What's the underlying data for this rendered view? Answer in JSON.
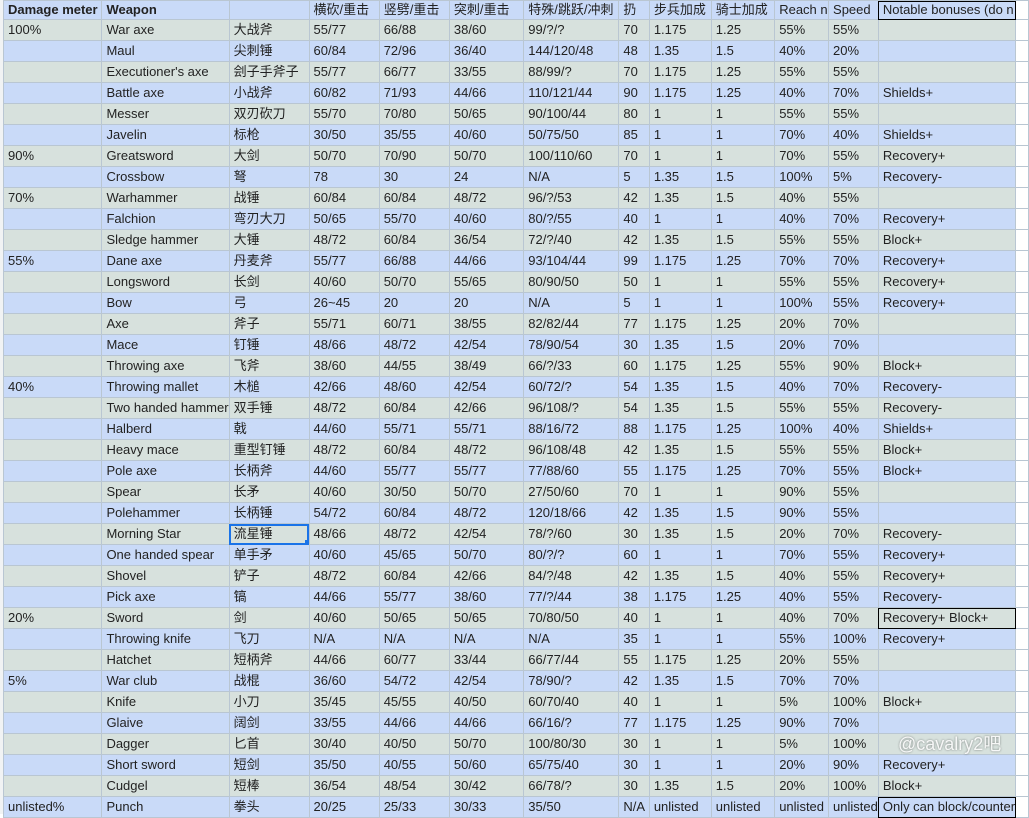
{
  "headers": [
    "Damage meter",
    "Weapon",
    "",
    "横砍/重击",
    "竖劈/重击",
    "突刺/重击",
    "特殊/跳跃/冲刺",
    "扔",
    "步兵加成",
    "骑士加成",
    "Reach n",
    "Speed",
    "Notable bonuses (do n"
  ],
  "rows": [
    [
      "100%",
      "War axe",
      "大战斧",
      "55/77",
      "66/88",
      "38/60",
      "99/?/?",
      "70",
      "1.175",
      "1.25",
      "55%",
      "55%",
      ""
    ],
    [
      "",
      "Maul",
      "尖刺锤",
      "60/84",
      "72/96",
      "36/40",
      "144/120/48",
      "48",
      "1.35",
      "1.5",
      "40%",
      "20%",
      ""
    ],
    [
      "",
      "Executioner's axe",
      "刽子手斧子",
      "55/77",
      "66/77",
      "33/55",
      "88/99/?",
      "70",
      "1.175",
      "1.25",
      "55%",
      "55%",
      ""
    ],
    [
      "",
      "Battle axe",
      "小战斧",
      "60/82",
      "71/93",
      "44/66",
      "110/121/44",
      "90",
      "1.175",
      "1.25",
      "40%",
      "70%",
      "Shields+"
    ],
    [
      "",
      "Messer",
      "双刃砍刀",
      "55/70",
      "70/80",
      "50/65",
      "90/100/44",
      "80",
      "1",
      "1",
      "55%",
      "55%",
      ""
    ],
    [
      "",
      "Javelin",
      "标枪",
      "30/50",
      "35/55",
      "40/60",
      "50/75/50",
      "85",
      "1",
      "1",
      "70%",
      "40%",
      "Shields+"
    ],
    [
      "90%",
      "Greatsword",
      "大剑",
      "50/70",
      "70/90",
      "50/70",
      "100/110/60",
      "70",
      "1",
      "1",
      "70%",
      "55%",
      "Recovery+"
    ],
    [
      "",
      "Crossbow",
      "弩",
      "78",
      "30",
      "24",
      "N/A",
      "5",
      "1.35",
      "1.5",
      "100%",
      "5%",
      "Recovery-"
    ],
    [
      "70%",
      "Warhammer",
      "战锤",
      "60/84",
      "60/84",
      "48/72",
      "96/?/53",
      "42",
      "1.35",
      "1.5",
      "40%",
      "55%",
      ""
    ],
    [
      "",
      "Falchion",
      "弯刃大刀",
      "50/65",
      "55/70",
      "40/60",
      "80/?/55",
      "40",
      "1",
      "1",
      "40%",
      "70%",
      "Recovery+"
    ],
    [
      "",
      "Sledge hammer",
      "大锤",
      "48/72",
      "60/84",
      "36/54",
      "72/?/40",
      "42",
      "1.35",
      "1.5",
      "55%",
      "55%",
      "Block+"
    ],
    [
      "55%",
      "Dane axe",
      "丹麦斧",
      "55/77",
      "66/88",
      "44/66",
      "93/104/44",
      "99",
      "1.175",
      "1.25",
      "70%",
      "70%",
      "Recovery+"
    ],
    [
      "",
      "Longsword",
      "长剑",
      "40/60",
      "50/70",
      "55/65",
      "80/90/50",
      "50",
      "1",
      "1",
      "55%",
      "55%",
      "Recovery+"
    ],
    [
      "",
      "Bow",
      "弓",
      "26~45",
      "20",
      "20",
      "N/A",
      "5",
      "1",
      "1",
      "100%",
      "55%",
      "Recovery+"
    ],
    [
      "",
      "Axe",
      "斧子",
      "55/71",
      "60/71",
      "38/55",
      "82/82/44",
      "77",
      "1.175",
      "1.25",
      "20%",
      "70%",
      ""
    ],
    [
      "",
      "Mace",
      "钉锤",
      "48/66",
      "48/72",
      "42/54",
      "78/90/54",
      "30",
      "1.35",
      "1.5",
      "20%",
      "70%",
      ""
    ],
    [
      "",
      "Throwing axe",
      "飞斧",
      "38/60",
      "44/55",
      "38/49",
      "66/?/33",
      "60",
      "1.175",
      "1.25",
      "55%",
      "90%",
      "Block+"
    ],
    [
      "40%",
      "Throwing mallet",
      "木槌",
      "42/66",
      "48/60",
      "42/54",
      "60/72/?",
      "54",
      "1.35",
      "1.5",
      "40%",
      "70%",
      "Recovery-"
    ],
    [
      "",
      "Two handed hammer",
      "双手锤",
      "48/72",
      "60/84",
      "42/66",
      "96/108/?",
      "54",
      "1.35",
      "1.5",
      "55%",
      "55%",
      "Recovery-"
    ],
    [
      "",
      "Halberd",
      "戟",
      "44/60",
      "55/71",
      "55/71",
      "88/16/72",
      "88",
      "1.175",
      "1.25",
      "100%",
      "40%",
      "Shields+"
    ],
    [
      "",
      "Heavy mace",
      "重型钉锤",
      "48/72",
      "60/84",
      "48/72",
      "96/108/48",
      "42",
      "1.35",
      "1.5",
      "55%",
      "55%",
      "Block+"
    ],
    [
      "",
      "Pole axe",
      "长柄斧",
      "44/60",
      "55/77",
      "55/77",
      "77/88/60",
      "55",
      "1.175",
      "1.25",
      "70%",
      "55%",
      "Block+"
    ],
    [
      "",
      "Spear",
      "长矛",
      "40/60",
      "30/50",
      "50/70",
      "27/50/60",
      "70",
      "1",
      "1",
      "90%",
      "55%",
      ""
    ],
    [
      "",
      "Polehammer",
      "长柄锤",
      "54/72",
      "60/84",
      "48/72",
      "120/18/66",
      "42",
      "1.35",
      "1.5",
      "90%",
      "55%",
      ""
    ],
    [
      "",
      "Morning Star",
      "流星锤",
      "48/66",
      "48/72",
      "42/54",
      "78/?/60",
      "30",
      "1.35",
      "1.5",
      "20%",
      "70%",
      "Recovery-"
    ],
    [
      "",
      "One handed spear",
      "单手矛",
      "40/60",
      "45/65",
      "50/70",
      "80/?/?",
      "60",
      "1",
      "1",
      "70%",
      "55%",
      "Recovery+"
    ],
    [
      "",
      "Shovel",
      "铲子",
      "48/72",
      "60/84",
      "42/66",
      "84/?/48",
      "42",
      "1.35",
      "1.5",
      "40%",
      "55%",
      "Recovery+"
    ],
    [
      "",
      "Pick axe",
      "镐",
      "44/66",
      "55/77",
      "38/60",
      "77/?/44",
      "38",
      "1.175",
      "1.25",
      "40%",
      "55%",
      "Recovery-"
    ],
    [
      "20%",
      "Sword",
      "剑",
      "40/60",
      "50/65",
      "50/65",
      "70/80/50",
      "40",
      "1",
      "1",
      "40%",
      "70%",
      "Recovery+ Block+"
    ],
    [
      "",
      "Throwing knife",
      "飞刀",
      "N/A",
      "N/A",
      "N/A",
      "N/A",
      "35",
      "1",
      "1",
      "55%",
      "100%",
      "Recovery+"
    ],
    [
      "",
      "Hatchet",
      "短柄斧",
      "44/66",
      "60/77",
      "33/44",
      "66/77/44",
      "55",
      "1.175",
      "1.25",
      "20%",
      "55%",
      ""
    ],
    [
      "5%",
      "War club",
      "战棍",
      "36/60",
      "54/72",
      "42/54",
      "78/90/?",
      "42",
      "1.35",
      "1.5",
      "70%",
      "70%",
      ""
    ],
    [
      "",
      "Knife",
      "小刀",
      "35/45",
      "45/55",
      "40/50",
      "60/70/40",
      "40",
      "1",
      "1",
      "5%",
      "100%",
      "Block+"
    ],
    [
      "",
      "Glaive",
      "阔剑",
      "33/55",
      "44/66",
      "44/66",
      "66/16/?",
      "77",
      "1.175",
      "1.25",
      "90%",
      "70%",
      ""
    ],
    [
      "",
      "Dagger",
      "匕首",
      "30/40",
      "40/50",
      "50/70",
      "100/80/30",
      "30",
      "1",
      "1",
      "5%",
      "100%",
      ""
    ],
    [
      "",
      "Short sword",
      "短剑",
      "35/50",
      "40/55",
      "50/60",
      "65/75/40",
      "30",
      "1",
      "1",
      "20%",
      "90%",
      "Recovery+"
    ],
    [
      "",
      "Cudgel",
      "短棒",
      "36/54",
      "48/54",
      "30/42",
      "66/78/?",
      "30",
      "1.35",
      "1.5",
      "20%",
      "100%",
      "Block+"
    ],
    [
      "unlisted%",
      "Punch",
      "拳头",
      "20/25",
      "25/33",
      "30/33",
      "35/50",
      "N/A",
      "unlisted",
      "unlisted",
      "unlisted",
      "unlisted",
      "Only can block/counter"
    ]
  ],
  "selected_cell": {
    "row": "Morning Star",
    "column": 3
  },
  "watermark": "@cavalry2吧",
  "colors": {
    "row_odd": "#d7e1dd",
    "row_even": "#c9daf8",
    "header": "#c9daf8",
    "selection": "#1a73e8"
  }
}
